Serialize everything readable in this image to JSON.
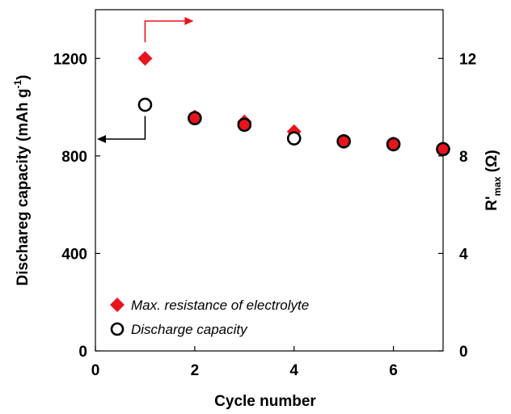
{
  "chart_data": {
    "type": "scatter",
    "xlabel": "Cycle number",
    "ylabel_left": "Dischareg capacity (mAh g",
    "ylabel_left_sup": "-1",
    "ylabel_left_close": ")",
    "ylabel_right_main": "R'",
    "ylabel_right_sub": "max",
    "ylabel_right_unit": " (Ω)",
    "xlim": [
      0,
      7
    ],
    "ylim_left": [
      0,
      1400
    ],
    "ylim_right": [
      0,
      14
    ],
    "x_ticks": [
      0,
      2,
      4,
      6
    ],
    "x_tick_labels": [
      "0",
      "2",
      "4",
      "6"
    ],
    "y_left_ticks": [
      0,
      400,
      800,
      1200
    ],
    "y_left_tick_labels": [
      "0",
      "400",
      "800",
      "1200"
    ],
    "y_right_ticks": [
      0,
      4,
      8,
      12
    ],
    "y_right_tick_labels": [
      "0",
      "4",
      "8",
      "12"
    ],
    "grid": false,
    "legend_placement": "bottom-left",
    "series": [
      {
        "name": "Max. resistance of electrolyte",
        "axis": "right",
        "marker": "diamond",
        "color": "#e8141c",
        "x": [
          1,
          2,
          3,
          4,
          5,
          6,
          7
        ],
        "y": [
          12.0,
          9.6,
          9.4,
          9.0,
          8.6,
          8.5,
          8.3
        ]
      },
      {
        "name": "Discharge capacity",
        "axis": "left",
        "marker": "open-circle",
        "color": "#000000",
        "x": [
          1,
          2,
          3,
          4,
          5,
          6,
          7
        ],
        "y": [
          1010,
          955,
          928,
          872,
          860,
          848,
          828
        ]
      }
    ]
  },
  "colors": {
    "resistance": "#e8141c",
    "capacity": "#000000"
  }
}
